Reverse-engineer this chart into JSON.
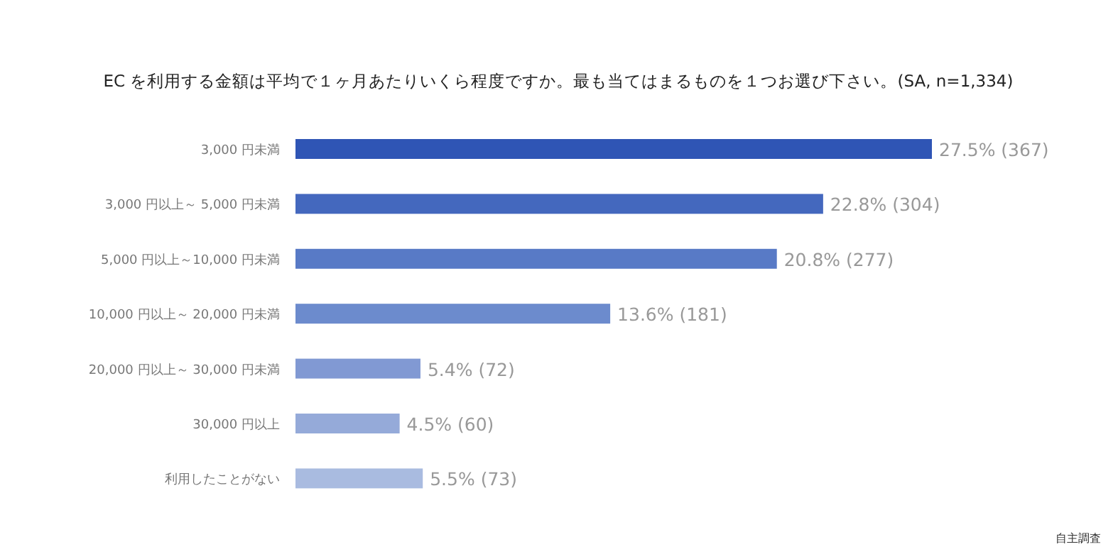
{
  "chart_data": {
    "type": "bar",
    "orientation": "horizontal",
    "title": "EC を利用する金額は平均で１ヶ月あたりいくら程度ですか。最も当てはまるものを１つお選び下さい。(SA, n=1,334)",
    "categories": [
      "3,000 円未満",
      "3,000 円以上～ 5,000 円未満",
      "5,000 円以上～10,000 円未満",
      "10,000 円以上～ 20,000 円未満",
      "20,000 円以上～ 30,000 円未満",
      "30,000 円以上",
      "利用したことがない"
    ],
    "values": [
      27.5,
      22.8,
      20.8,
      13.6,
      5.4,
      4.5,
      5.5
    ],
    "value_labels": [
      "27.5% (367)",
      "22.8% (304)",
      "20.8% (277)",
      "13.6% (181)",
      "5.4% (72)",
      "4.5% (60)",
      "5.5% (73)"
    ],
    "colors": [
      "#2f55b5",
      "#4468be",
      "#587ac6",
      "#6c8bcd",
      "#8199d3",
      "#95aad9",
      "#a9bbe0"
    ],
    "annotations": [
      "自主調査"
    ]
  }
}
